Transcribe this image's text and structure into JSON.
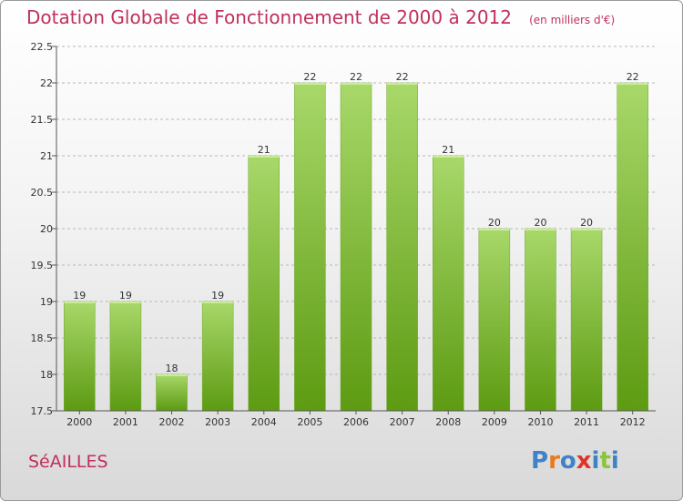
{
  "chart_data": {
    "type": "bar",
    "title": "Dotation Globale de Fonctionnement de 2000 à 2012",
    "unit_label": "(en milliers d'€)",
    "categories": [
      "2000",
      "2001",
      "2002",
      "2003",
      "2004",
      "2005",
      "2006",
      "2007",
      "2008",
      "2009",
      "2010",
      "2011",
      "2012"
    ],
    "values": [
      19,
      19,
      18,
      19,
      21,
      22,
      22,
      22,
      21,
      20,
      20,
      20,
      22
    ],
    "data_labels": [
      "19",
      "19",
      "18",
      "19",
      "21",
      "22",
      "22",
      "22",
      "21",
      "20",
      "20",
      "20",
      "22"
    ],
    "ylim": [
      17.5,
      22.5
    ],
    "yticks": [
      17.5,
      18,
      18.5,
      19,
      19.5,
      20,
      20.5,
      21,
      21.5,
      22,
      22.5
    ],
    "ytick_labels": [
      "17.5",
      "18",
      "18.5",
      "19",
      "19.5",
      "20",
      "20.5",
      "21",
      "21.5",
      "22",
      "22.5"
    ],
    "xlabel": "",
    "ylabel": "",
    "grid": "dashed-horizontal",
    "colors": {
      "bar_top": "#a8d86a",
      "bar_bottom": "#5d9b12",
      "grid": "#b8b8b8",
      "axis": "#555555"
    }
  },
  "footer": {
    "city": "SéAILLES",
    "logo_letters": [
      "P",
      "r",
      "o",
      "x",
      "i",
      "t",
      "i"
    ],
    "logo_colors": [
      "#3f82c7",
      "#e87b1e",
      "#3f82c7",
      "#e0342b",
      "#3f82c7",
      "#8cc43f",
      "#3f82c7"
    ]
  }
}
